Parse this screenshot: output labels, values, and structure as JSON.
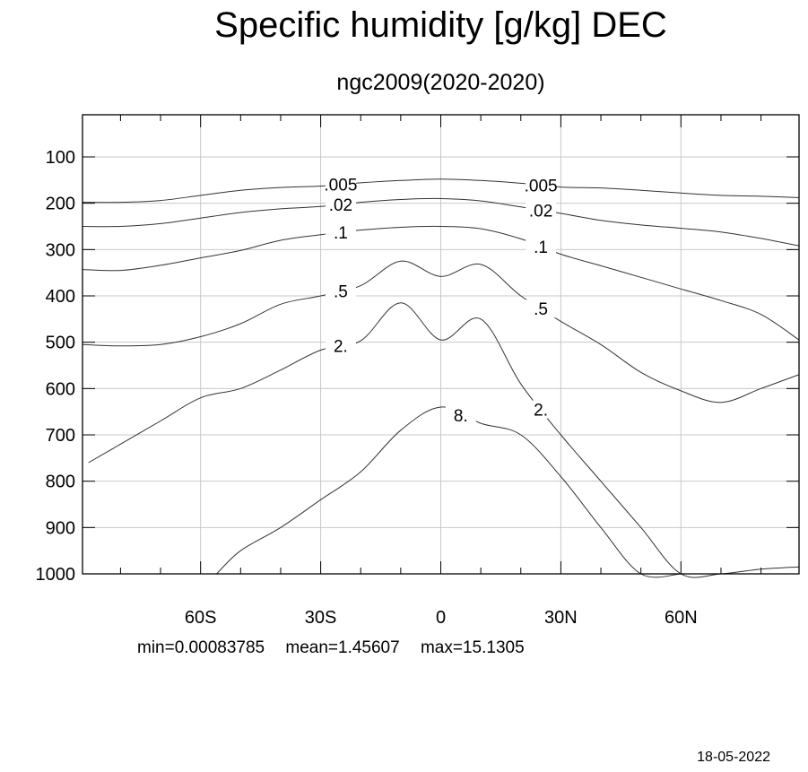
{
  "chart_data": {
    "type": "contour",
    "title": "Specific humidity [g/kg] DEC",
    "subtitle": "ngc2009(2020-2020)",
    "x_ticks": [
      {
        "value": -60,
        "label": "60S"
      },
      {
        "value": -30,
        "label": "30S"
      },
      {
        "value": 0,
        "label": "0"
      },
      {
        "value": 30,
        "label": "30N"
      },
      {
        "value": 60,
        "label": "60N"
      }
    ],
    "y_ticks": [
      {
        "value": 100,
        "label": "100"
      },
      {
        "value": 200,
        "label": "200"
      },
      {
        "value": 300,
        "label": "300"
      },
      {
        "value": 400,
        "label": "400"
      },
      {
        "value": 500,
        "label": "500"
      },
      {
        "value": 600,
        "label": "600"
      },
      {
        "value": 700,
        "label": "700"
      },
      {
        "value": 800,
        "label": "800"
      },
      {
        "value": 900,
        "label": "900"
      },
      {
        "value": 1000,
        "label": "1000"
      }
    ],
    "xlim": [
      -89.5,
      89.5
    ],
    "ylim": [
      1000,
      10
    ],
    "grid": true,
    "levels": [
      {
        "label": ".005",
        "lat": [
          -89.5,
          -80,
          -70,
          -60,
          -50,
          -40,
          -30,
          -20,
          -10,
          0,
          10,
          20,
          30,
          40,
          50,
          60,
          70,
          80,
          89.5
        ],
        "p": [
          198,
          198,
          194,
          183,
          172,
          166,
          163,
          156,
          151,
          148,
          151,
          157,
          165,
          167,
          172,
          178,
          183,
          185,
          188
        ]
      },
      {
        "label": ".02",
        "lat": [
          -89.5,
          -80,
          -70,
          -60,
          -50,
          -40,
          -30,
          -20,
          -10,
          0,
          10,
          20,
          30,
          40,
          50,
          60,
          70,
          80,
          89.5
        ],
        "p": [
          250,
          250,
          244,
          232,
          220,
          212,
          207,
          198,
          192,
          190,
          195,
          208,
          222,
          237,
          247,
          254,
          262,
          276,
          292
        ]
      },
      {
        "label": ".1",
        "lat": [
          -89.5,
          -80,
          -70,
          -60,
          -50,
          -40,
          -30,
          -20,
          -10,
          0,
          10,
          20,
          30,
          40,
          50,
          60,
          70,
          80,
          89.5
        ],
        "p": [
          343,
          345,
          334,
          318,
          302,
          280,
          268,
          258,
          252,
          250,
          255,
          277,
          310,
          335,
          360,
          385,
          410,
          440,
          495
        ]
      },
      {
        "label": ".5",
        "lat": [
          -89.5,
          -80,
          -70,
          -60,
          -50,
          -40,
          -30,
          -20,
          -10,
          0,
          10,
          20,
          30,
          40,
          50,
          60,
          70,
          80,
          89.5
        ],
        "p": [
          505,
          508,
          505,
          488,
          460,
          418,
          400,
          378,
          325,
          358,
          332,
          400,
          455,
          505,
          565,
          605,
          630,
          600,
          570
        ]
      },
      {
        "label": "2.",
        "lat": [
          -88,
          -80,
          -70,
          -60,
          -50,
          -40,
          -30,
          -20,
          -10,
          0,
          10,
          20,
          30,
          40,
          50,
          60,
          70,
          80,
          89.5
        ],
        "p": [
          760,
          720,
          670,
          620,
          600,
          560,
          517,
          497,
          415,
          495,
          450,
          590,
          700,
          800,
          900,
          1000,
          1000,
          990,
          985
        ]
      },
      {
        "label": "8.",
        "lat": [
          -56,
          -50,
          -40,
          -30,
          -20,
          -10,
          0,
          10,
          20,
          30,
          40,
          50,
          60
        ],
        "p": [
          1000,
          950,
          900,
          840,
          780,
          690,
          640,
          675,
          700,
          790,
          900,
          1000,
          1000
        ]
      }
    ]
  },
  "stats": {
    "min": "min=0.00083785",
    "mean": "mean=1.45607",
    "max": "max=15.1305"
  },
  "date": "18-05-2022"
}
